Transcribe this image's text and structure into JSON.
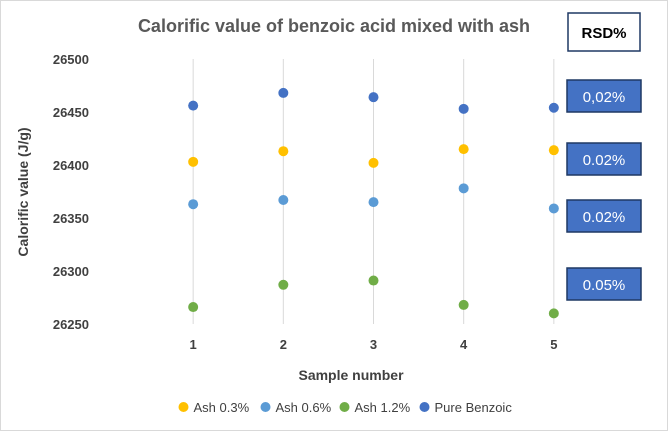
{
  "chart_data": {
    "type": "scatter",
    "title": "Calorific value of benzoic acid mixed with ash",
    "xlabel": "Sample number",
    "ylabel": "Calorific value (J/g)",
    "x": [
      1,
      2,
      3,
      4,
      5
    ],
    "xlim": [
      0,
      6
    ],
    "xticks": [
      "1",
      "2",
      "3",
      "4",
      "5"
    ],
    "ylim": [
      26250,
      26500
    ],
    "yticks": [
      "26250",
      "26300",
      "26350",
      "26400",
      "26450",
      "26500"
    ],
    "grid": "vertical",
    "legend": "bottom",
    "series": [
      {
        "name": "Ash 0.3%",
        "color": "#ffc000",
        "values": [
          26403,
          26413,
          26402,
          26415,
          26414
        ]
      },
      {
        "name": "Ash 0.6%",
        "color": "#5b9bd5",
        "values": [
          26363,
          26367,
          26365,
          26378,
          26359
        ]
      },
      {
        "name": "Ash 1.2%",
        "color": "#70ad47",
        "values": [
          26266,
          26287,
          26291,
          26268,
          26260
        ]
      },
      {
        "name": "Pure Benzoic",
        "color": "#4472c4",
        "values": [
          26456,
          26468,
          26464,
          26453,
          26454
        ]
      }
    ],
    "annotations": {
      "header": "RSD%",
      "box_color": "#4472c4",
      "boxes": [
        "0,02%",
        "0.02%",
        "0.02%",
        "0.05%"
      ]
    }
  }
}
